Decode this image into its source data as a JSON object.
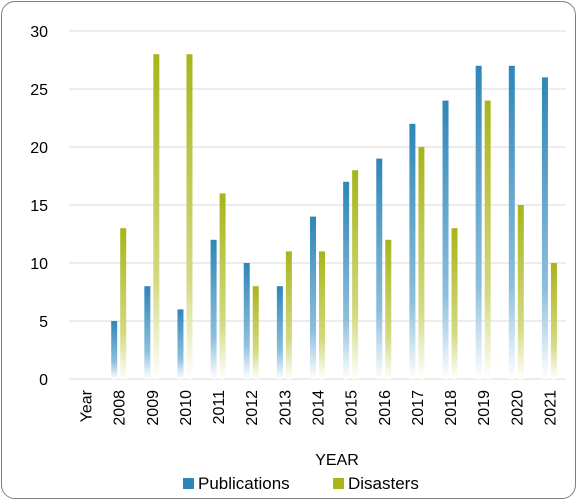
{
  "chart_data": {
    "type": "bar",
    "categories": [
      "Year",
      "2008",
      "2009",
      "2010",
      "2011",
      "2012",
      "2013",
      "2014",
      "2015",
      "2016",
      "2017",
      "2018",
      "2019",
      "2020",
      "2021"
    ],
    "series": [
      {
        "name": "Publications",
        "values": [
          null,
          5,
          8,
          6,
          12,
          10,
          8,
          14,
          17,
          19,
          22,
          24,
          27,
          27,
          26
        ],
        "color": "#2e86b8"
      },
      {
        "name": "Disasters",
        "values": [
          null,
          13,
          28,
          28,
          16,
          8,
          11,
          11,
          18,
          12,
          20,
          13,
          24,
          15,
          10
        ],
        "color": "#a8b41a"
      }
    ],
    "title": "",
    "xlabel": "YEAR",
    "ylabel": "",
    "ylim": [
      0,
      30
    ],
    "yticks": [
      "0",
      "5",
      "10",
      "15",
      "20",
      "25",
      "30"
    ],
    "grid": true,
    "legend_position": "bottom"
  }
}
